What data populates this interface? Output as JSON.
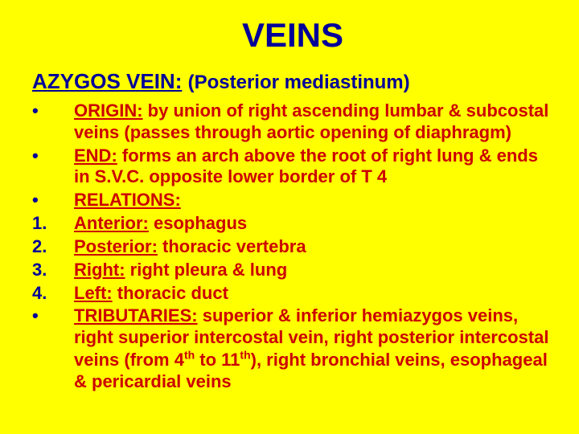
{
  "colors": {
    "background": "#ffff00",
    "title": "#000099",
    "bullet": "#000099",
    "body": "#cc0000"
  },
  "typography": {
    "title_fontsize": 42,
    "subtitle_fontsize": 26,
    "body_fontsize": 22,
    "font_family": "Arial, Helvetica, sans-serif",
    "font_weight": "bold"
  },
  "title": "VEINS",
  "subtitle_label": "AZYGOS VEIN:",
  "subtitle_loc": "(Posterior mediastinum)",
  "items": [
    {
      "bullet": "•",
      "label": "ORIGIN:",
      "rest": " by union of right ascending lumbar & subcostal veins (passes through aortic opening of diaphragm)"
    },
    {
      "bullet": "•",
      "label": "END:",
      "rest": " forms an arch above the root of right lung & ends in S.V.C. opposite lower border of T 4"
    },
    {
      "bullet": "•",
      "label": "RELATIONS:",
      "rest": ""
    },
    {
      "bullet": "1.",
      "label": "Anterior:",
      "rest": " esophagus"
    },
    {
      "bullet": "2.",
      "label": "Posterior:",
      "rest": " thoracic vertebra"
    },
    {
      "bullet": "3.",
      "label": "Right:",
      "rest": " right pleura & lung"
    },
    {
      "bullet": "4.",
      "label": "Left:",
      "rest": " thoracic duct"
    },
    {
      "bullet": "•",
      "label": "TRIBUTARIES:",
      "rest_html": " superior & inferior hemiazygos veins, right superior intercostal vein, right posterior intercostal veins (from 4<span class=\"sup\">th</span> to 11<span class=\"sup\">th</span>), right bronchial veins, esophageal & pericardial veins"
    }
  ]
}
